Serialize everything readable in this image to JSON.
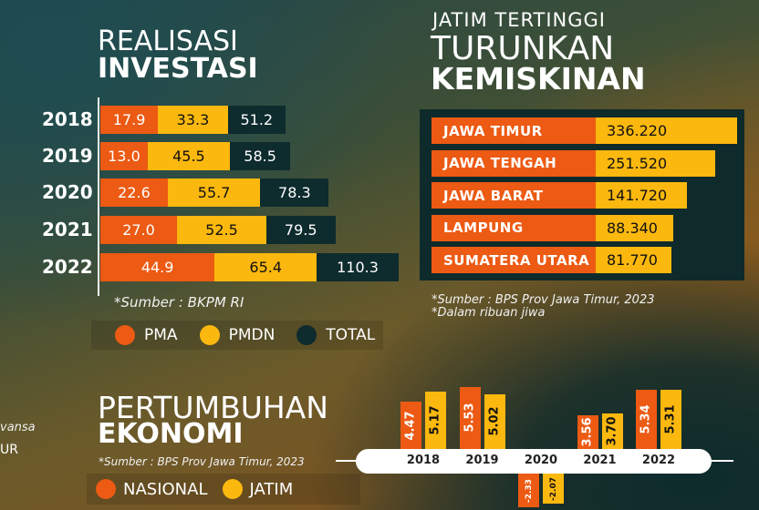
{
  "investasi": {
    "title_line1": "REALISASI",
    "title_line2": "INVESTASI",
    "rows": [
      {
        "year": "2018",
        "pma": "17.9",
        "pmdn": "33.3",
        "total": "51.2"
      },
      {
        "year": "2019",
        "pma": "13.0",
        "pmdn": "45.5",
        "total": "58.5"
      },
      {
        "year": "2020",
        "pma": "22.6",
        "pmdn": "55.7",
        "total": "78.3"
      },
      {
        "year": "2021",
        "pma": "27.0",
        "pmdn": "52.5",
        "total": "79.5"
      },
      {
        "year": "2022",
        "pma": "44.9",
        "pmdn": "65.4",
        "total": "110.3"
      }
    ],
    "source": "*Sumber : BKPM RI",
    "legend": {
      "pma": "PMA",
      "pmdn": "PMDN",
      "total": "TOTAL"
    }
  },
  "kemiskinan": {
    "title_line1": "JATIM TERTINGGI",
    "title_line2": "TURUNKAN",
    "title_line3": "KEMISKINAN",
    "rows": [
      {
        "name": "JAWA TIMUR",
        "value": "336.220"
      },
      {
        "name": "JAWA TENGAH",
        "value": "251.520"
      },
      {
        "name": "JAWA BARAT",
        "value": "141.720"
      },
      {
        "name": "LAMPUNG",
        "value": "88.340"
      },
      {
        "name": "SUMATERA UTARA",
        "value": "81.770"
      }
    ],
    "source": "*Sumber : BPS Prov Jawa Timur, 2023",
    "note": "*Dalam ribuan jiwa"
  },
  "ekonomi": {
    "title_line1": "PERTUMBUHAN",
    "title_line2": "EKONOMI",
    "source": "*Sumber : BPS Prov Jawa Timur, 2023",
    "legend": {
      "nasional": "NASIONAL",
      "jatim": "JATIM"
    }
  },
  "edge_text": {
    "line1": "vansa",
    "line2": "UR"
  },
  "colors": {
    "orange": "#ec5a13",
    "yellow": "#fbb80e",
    "dark": "#0e2b2d"
  },
  "chart_data": [
    {
      "type": "bar",
      "title": "REALISASI INVESTASI",
      "categories": [
        "2018",
        "2019",
        "2020",
        "2021",
        "2022"
      ],
      "series": [
        {
          "name": "PMA",
          "values": [
            17.9,
            13.0,
            22.6,
            27.0,
            44.9
          ]
        },
        {
          "name": "PMDN",
          "values": [
            33.3,
            45.5,
            55.7,
            52.5,
            65.4
          ]
        },
        {
          "name": "TOTAL",
          "values": [
            51.2,
            58.5,
            78.3,
            79.5,
            110.3
          ]
        }
      ],
      "orientation": "horizontal",
      "legend": "bottom"
    },
    {
      "type": "bar",
      "title": "JATIM TERTINGGI TURUNKAN KEMISKINAN",
      "categories": [
        "JAWA TIMUR",
        "JAWA TENGAH",
        "JAWA BARAT",
        "LAMPUNG",
        "SUMATERA UTARA"
      ],
      "values": [
        336.22,
        251.52,
        141.72,
        88.34,
        81.77
      ],
      "orientation": "horizontal"
    },
    {
      "type": "bar",
      "title": "PERTUMBUHAN EKONOMI",
      "categories": [
        "2018",
        "2019",
        "2020",
        "2021",
        "2022"
      ],
      "series": [
        {
          "name": "NASIONAL",
          "values": [
            4.47,
            5.53,
            -2.33,
            3.56,
            5.34
          ]
        },
        {
          "name": "JATIM",
          "values": [
            5.17,
            5.02,
            -2.07,
            3.7,
            5.31
          ]
        }
      ],
      "value_labels": {
        "NASIONAL": [
          "4.47",
          "5.53",
          "-2.33",
          "3.56",
          "5.34"
        ],
        "JATIM": [
          "5.17",
          "5.02",
          "-2.07",
          "3.70",
          "5.31"
        ]
      },
      "legend": "bottom-left"
    }
  ]
}
